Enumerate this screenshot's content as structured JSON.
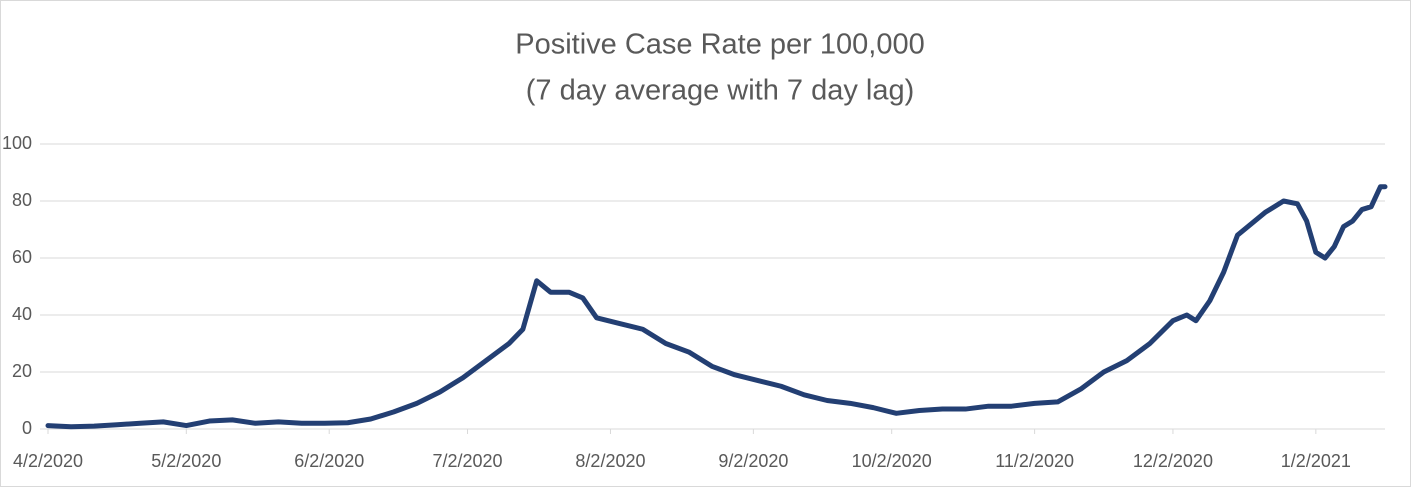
{
  "chart_data": {
    "type": "line",
    "title": "Positive Case Rate per 100,000",
    "subtitle": "(7 day average with 7 day lag)",
    "x": [
      "4/2/2020",
      "4/7/2020",
      "4/12/2020",
      "4/17/2020",
      "4/22/2020",
      "4/27/2020",
      "5/2/2020",
      "5/7/2020",
      "5/12/2020",
      "5/17/2020",
      "5/22/2020",
      "5/27/2020",
      "6/1/2020",
      "6/6/2020",
      "6/11/2020",
      "6/16/2020",
      "6/21/2020",
      "6/26/2020",
      "7/1/2020",
      "7/6/2020",
      "7/11/2020",
      "7/14/2020",
      "7/17/2020",
      "7/20/2020",
      "7/24/2020",
      "7/27/2020",
      "7/30/2020",
      "8/4/2020",
      "8/9/2020",
      "8/14/2020",
      "8/19/2020",
      "8/24/2020",
      "8/29/2020",
      "9/3/2020",
      "9/8/2020",
      "9/13/2020",
      "9/18/2020",
      "9/23/2020",
      "9/28/2020",
      "10/3/2020",
      "10/8/2020",
      "10/13/2020",
      "10/18/2020",
      "10/23/2020",
      "10/28/2020",
      "11/2/2020",
      "11/7/2020",
      "11/12/2020",
      "11/17/2020",
      "11/22/2020",
      "11/27/2020",
      "12/2/2020",
      "12/5/2020",
      "12/7/2020",
      "12/10/2020",
      "12/13/2020",
      "12/16/2020",
      "12/19/2020",
      "12/22/2020",
      "12/26/2020",
      "12/29/2020",
      "12/31/2020",
      "1/2/2021",
      "1/4/2021",
      "1/6/2021",
      "1/8/2021",
      "1/10/2021",
      "1/12/2021",
      "1/14/2021",
      "1/16/2021",
      "1/17/2021"
    ],
    "series": [
      {
        "name": "Positive Case Rate",
        "color": "#233f73",
        "values": [
          1.2,
          0.8,
          1,
          1.5,
          2,
          2.5,
          1.2,
          2.8,
          3.2,
          2,
          2.5,
          2,
          2,
          2.2,
          3.5,
          6,
          9,
          13,
          18,
          24,
          30,
          35,
          52,
          48,
          48,
          46,
          39,
          37,
          35,
          30,
          27,
          22,
          19,
          17,
          15,
          12,
          10,
          9,
          7.5,
          5.5,
          6.5,
          7,
          7,
          8,
          8,
          9,
          9.5,
          14,
          20,
          24,
          30,
          38,
          40,
          38,
          45,
          55,
          68,
          72,
          76,
          80,
          79,
          73,
          62,
          60,
          64,
          71,
          73,
          77,
          78,
          85,
          85
        ]
      }
    ],
    "xlim": [
      "4/2/2020",
      "1/17/2021"
    ],
    "xticks": [
      "4/2/2020",
      "5/2/2020",
      "6/2/2020",
      "7/2/2020",
      "8/2/2020",
      "9/2/2020",
      "10/2/2020",
      "11/2/2020",
      "12/2/2020",
      "1/2/2021"
    ],
    "ylim": [
      0,
      100
    ],
    "yticks": [
      0,
      20,
      40,
      60,
      80,
      100
    ],
    "grid": true
  }
}
